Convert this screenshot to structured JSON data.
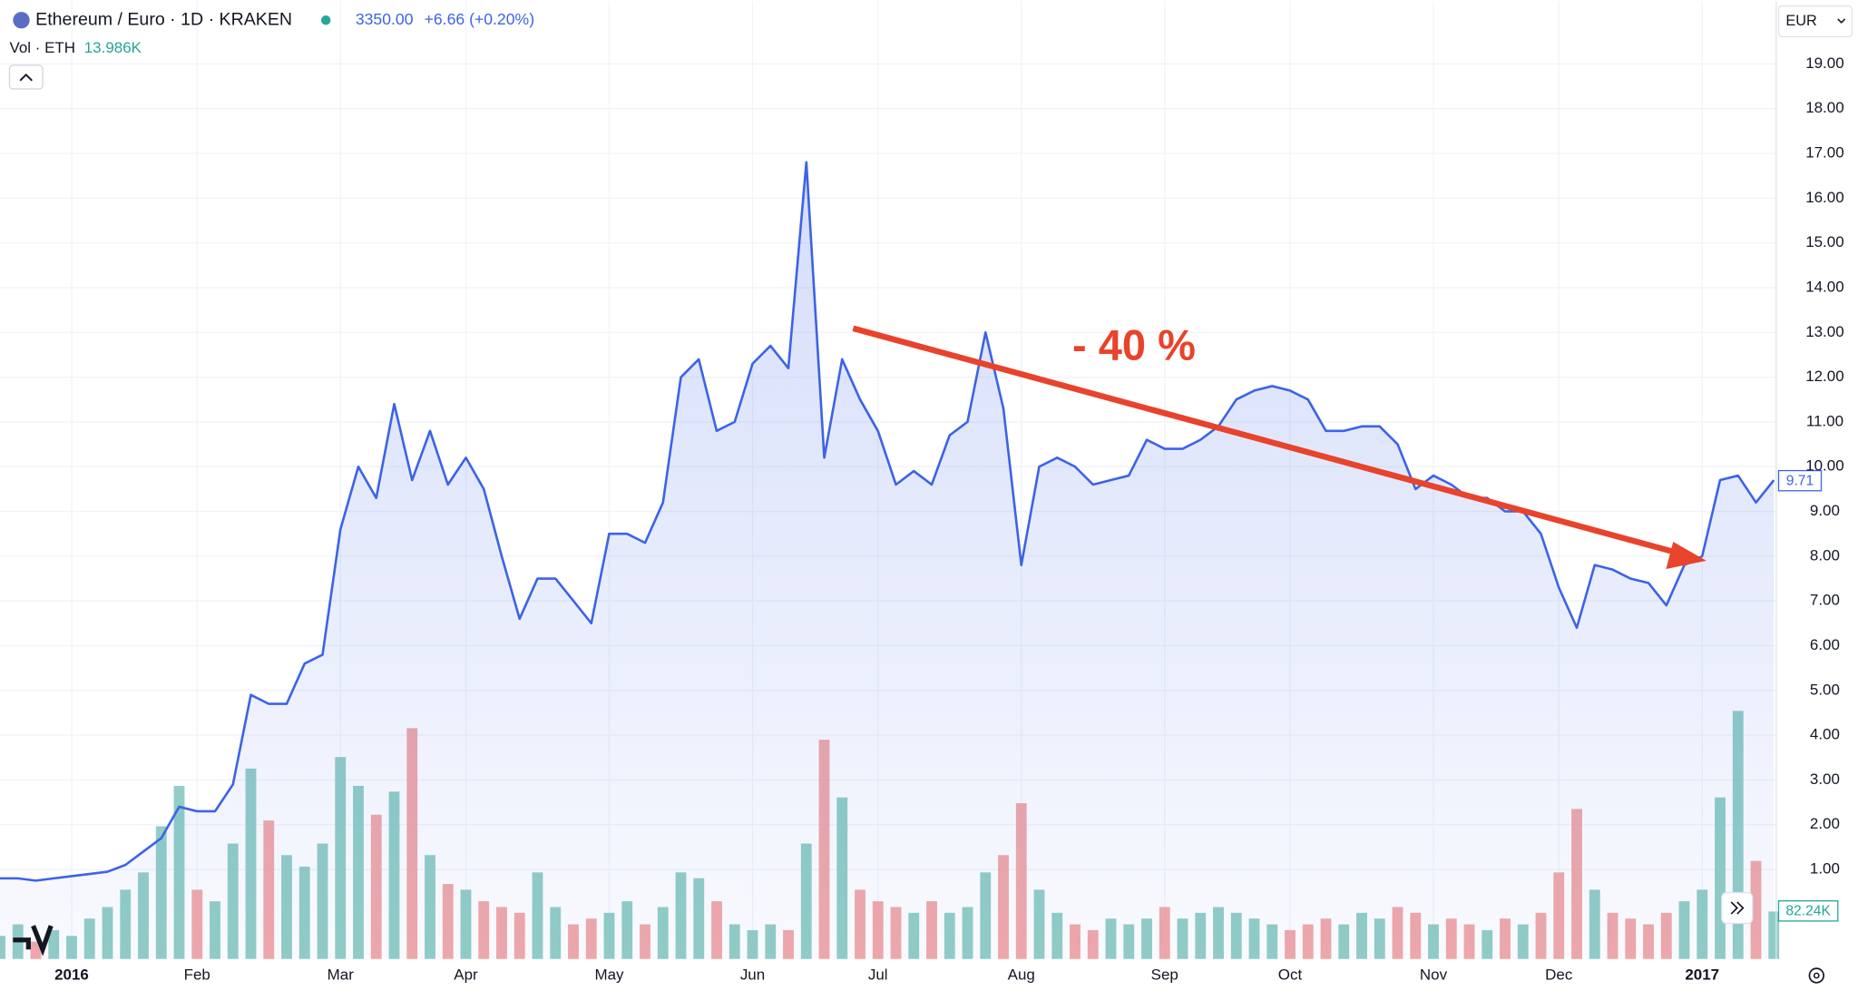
{
  "header": {
    "title": "Ethereum / Euro · 1D · KRAKEN",
    "price": "3350.00",
    "change": "+6.66 (+0.20%)",
    "volume_label": "Vol · ETH",
    "volume_value": "13.986K",
    "currency": "EUR",
    "price_tag": "9.71",
    "volume_tag": "82.24K"
  },
  "annotation": "- 40 %",
  "chart_data": {
    "type": "line",
    "categories": [
      null,
      null,
      null,
      null,
      "2016",
      null,
      null,
      null,
      null,
      null,
      null,
      "Feb",
      null,
      null,
      null,
      null,
      null,
      null,
      null,
      "Mar",
      null,
      null,
      null,
      null,
      null,
      null,
      "Apr",
      null,
      null,
      null,
      null,
      null,
      null,
      null,
      "May",
      null,
      null,
      null,
      null,
      null,
      null,
      null,
      "Jun",
      null,
      null,
      null,
      null,
      null,
      null,
      "Jul",
      null,
      null,
      null,
      null,
      null,
      null,
      null,
      "Aug",
      null,
      null,
      null,
      null,
      null,
      null,
      null,
      "Sep",
      null,
      null,
      null,
      null,
      null,
      null,
      "Oct",
      null,
      null,
      null,
      null,
      null,
      null,
      null,
      "Nov",
      null,
      null,
      null,
      null,
      null,
      null,
      "Dec",
      null,
      null,
      null,
      null,
      null,
      null,
      null,
      "2017",
      null,
      null,
      null,
      null
    ],
    "series": [
      {
        "name": "Ethereum / Euro",
        "color": "#3d63e6",
        "values": [
          0.8,
          0.8,
          0.75,
          0.8,
          0.85,
          0.9,
          0.95,
          1.1,
          1.4,
          1.7,
          2.4,
          2.3,
          2.3,
          2.9,
          4.9,
          4.7,
          4.7,
          5.6,
          5.8,
          8.6,
          10.0,
          9.3,
          11.4,
          9.7,
          10.8,
          9.6,
          10.2,
          9.5,
          8.0,
          6.6,
          7.5,
          7.5,
          7.0,
          6.5,
          8.5,
          8.5,
          8.3,
          9.2,
          12.0,
          12.4,
          10.8,
          11.0,
          12.3,
          12.7,
          12.2,
          16.8,
          10.2,
          12.4,
          11.5,
          10.8,
          9.6,
          9.9,
          9.6,
          10.7,
          11.0,
          13.0,
          11.3,
          7.8,
          10.0,
          10.2,
          10.0,
          9.6,
          9.7,
          9.8,
          10.6,
          10.4,
          10.4,
          10.6,
          10.9,
          11.5,
          11.7,
          11.8,
          11.7,
          11.5,
          10.8,
          10.8,
          10.9,
          10.9,
          10.5,
          9.5,
          9.8,
          9.6,
          9.3,
          9.3,
          9.0,
          9.0,
          8.5,
          7.3,
          6.4,
          7.8,
          7.7,
          7.5,
          7.4,
          6.9,
          7.8,
          8.0,
          9.7,
          9.8,
          9.2,
          9.7
        ]
      },
      {
        "name": "Vol · ETH",
        "axis": "y2",
        "up_color": "#7fc6bc",
        "down_color": "#ef9a9a",
        "values": [
          40000,
          60000,
          30000,
          50000,
          40000,
          70000,
          90000,
          120000,
          150000,
          230000,
          300000,
          120000,
          100000,
          200000,
          330000,
          240000,
          180000,
          160000,
          200000,
          350000,
          300000,
          250000,
          290000,
          400000,
          180000,
          130000,
          120000,
          100000,
          90000,
          80000,
          150000,
          90000,
          60000,
          70000,
          80000,
          100000,
          60000,
          90000,
          150000,
          140000,
          100000,
          60000,
          50000,
          60000,
          50000,
          200000,
          380000,
          280000,
          120000,
          100000,
          90000,
          80000,
          100000,
          80000,
          90000,
          150000,
          180000,
          270000,
          120000,
          80000,
          60000,
          50000,
          70000,
          60000,
          70000,
          90000,
          70000,
          80000,
          90000,
          80000,
          70000,
          60000,
          50000,
          60000,
          70000,
          60000,
          80000,
          70000,
          90000,
          80000,
          60000,
          70000,
          60000,
          50000,
          70000,
          60000,
          80000,
          150000,
          260000,
          120000,
          80000,
          70000,
          60000,
          80000,
          100000,
          120000,
          280000,
          430000,
          170000,
          82240
        ]
      }
    ],
    "ylim": [
      -1,
      20.4
    ],
    "yticks": [
      {
        "value": 1,
        "label": "1.00"
      },
      {
        "value": 2,
        "label": "2.00"
      },
      {
        "value": 3,
        "label": "3.00"
      },
      {
        "value": 4,
        "label": "4.00"
      },
      {
        "value": 5,
        "label": "5.00"
      },
      {
        "value": 6,
        "label": "6.00"
      },
      {
        "value": 7,
        "label": "7.00"
      },
      {
        "value": 8,
        "label": "8.00"
      },
      {
        "value": 9,
        "label": "9.00"
      },
      {
        "value": 10,
        "label": "10.00"
      },
      {
        "value": 11,
        "label": "11.00"
      },
      {
        "value": 12,
        "label": "12.00"
      },
      {
        "value": 13,
        "label": "13.00"
      },
      {
        "value": 14,
        "label": "14.00"
      },
      {
        "value": 15,
        "label": "15.00"
      },
      {
        "value": 16,
        "label": "16.00"
      },
      {
        "value": 17,
        "label": "17.00"
      },
      {
        "value": 18,
        "label": "18.00"
      },
      {
        "value": 19,
        "label": "19.00"
      }
    ],
    "y2lim": [
      0,
      1660000
    ],
    "grid": true
  }
}
